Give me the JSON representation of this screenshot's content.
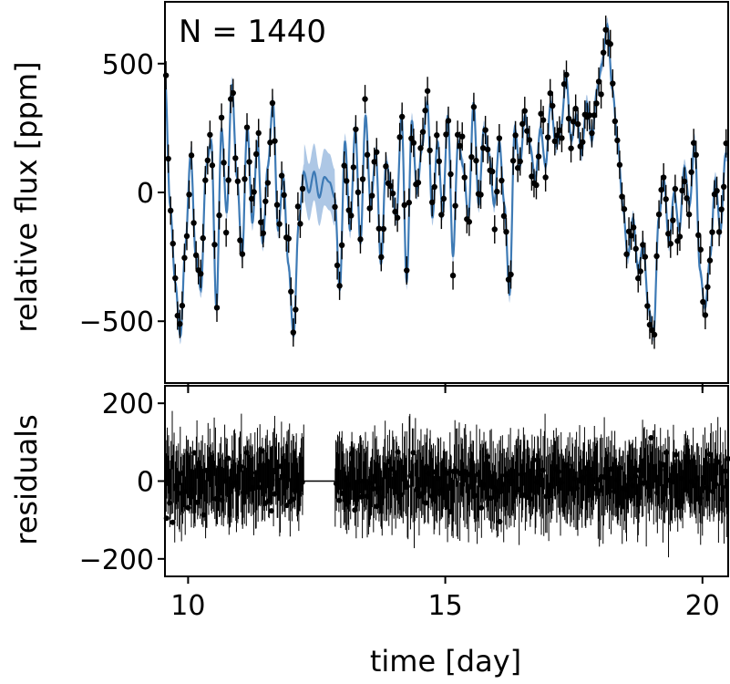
{
  "chart_data": [
    {
      "panel": "top",
      "type": "scatter",
      "title": "",
      "annotation": "N = 1440",
      "ylabel": "relative flux [ppm]",
      "xlabel": "",
      "xlim": [
        9.55,
        20.5
      ],
      "ylim": [
        -740,
        740
      ],
      "yticks": [
        -500,
        0,
        500
      ],
      "ytick_labels": [
        "−500",
        "0",
        "500"
      ],
      "xticks": [
        10,
        15,
        20
      ],
      "gap": [
        12.25,
        12.85
      ],
      "model_color": "#3d7ab5",
      "band_color": "#9fbde0",
      "points_color": "#000000",
      "model_points": [
        [
          9.55,
          450
        ],
        [
          9.65,
          -50
        ],
        [
          9.75,
          -350
        ],
        [
          9.85,
          -560
        ],
        [
          9.95,
          -200
        ],
        [
          10.05,
          150
        ],
        [
          10.15,
          -250
        ],
        [
          10.25,
          -380
        ],
        [
          10.35,
          100
        ],
        [
          10.45,
          200
        ],
        [
          10.55,
          -450
        ],
        [
          10.65,
          250
        ],
        [
          10.75,
          -80
        ],
        [
          10.85,
          420
        ],
        [
          10.95,
          60
        ],
        [
          11.05,
          -250
        ],
        [
          11.15,
          260
        ],
        [
          11.25,
          -120
        ],
        [
          11.35,
          200
        ],
        [
          11.45,
          -200
        ],
        [
          11.55,
          100
        ],
        [
          11.65,
          350
        ],
        [
          11.75,
          -150
        ],
        [
          11.85,
          60
        ],
        [
          11.95,
          -280
        ],
        [
          12.05,
          -560
        ],
        [
          12.15,
          -120
        ],
        [
          12.25,
          80
        ],
        [
          12.35,
          0
        ],
        [
          12.45,
          80
        ],
        [
          12.55,
          -20
        ],
        [
          12.65,
          60
        ],
        [
          12.75,
          40
        ],
        [
          12.85,
          -20
        ],
        [
          12.95,
          -380
        ],
        [
          13.05,
          200
        ],
        [
          13.15,
          -150
        ],
        [
          13.25,
          250
        ],
        [
          13.35,
          -200
        ],
        [
          13.45,
          300
        ],
        [
          13.55,
          -50
        ],
        [
          13.65,
          150
        ],
        [
          13.75,
          -280
        ],
        [
          13.85,
          120
        ],
        [
          13.95,
          20
        ],
        [
          14.05,
          -100
        ],
        [
          14.15,
          300
        ],
        [
          14.25,
          -350
        ],
        [
          14.35,
          280
        ],
        [
          14.45,
          0
        ],
        [
          14.55,
          180
        ],
        [
          14.65,
          350
        ],
        [
          14.75,
          -100
        ],
        [
          14.85,
          200
        ],
        [
          14.95,
          -80
        ],
        [
          15.05,
          300
        ],
        [
          15.15,
          -250
        ],
        [
          15.25,
          200
        ],
        [
          15.35,
          100
        ],
        [
          15.45,
          -100
        ],
        [
          15.55,
          350
        ],
        [
          15.65,
          -50
        ],
        [
          15.75,
          250
        ],
        [
          15.85,
          150
        ],
        [
          15.95,
          -50
        ],
        [
          16.05,
          200
        ],
        [
          16.15,
          -50
        ],
        [
          16.25,
          -400
        ],
        [
          16.35,
          250
        ],
        [
          16.45,
          100
        ],
        [
          16.55,
          300
        ],
        [
          16.65,
          180
        ],
        [
          16.75,
          50
        ],
        [
          16.85,
          250
        ],
        [
          16.95,
          100
        ],
        [
          17.05,
          350
        ],
        [
          17.15,
          180
        ],
        [
          17.25,
          250
        ],
        [
          17.35,
          450
        ],
        [
          17.45,
          200
        ],
        [
          17.55,
          300
        ],
        [
          17.65,
          150
        ],
        [
          17.75,
          350
        ],
        [
          17.85,
          200
        ],
        [
          17.95,
          400
        ],
        [
          18.05,
          500
        ],
        [
          18.15,
          650
        ],
        [
          18.25,
          400
        ],
        [
          18.35,
          200
        ],
        [
          18.45,
          -50
        ],
        [
          18.55,
          -250
        ],
        [
          18.65,
          -100
        ],
        [
          18.75,
          -300
        ],
        [
          18.85,
          -200
        ],
        [
          18.95,
          -450
        ],
        [
          19.05,
          -550
        ],
        [
          19.15,
          -100
        ],
        [
          19.25,
          50
        ],
        [
          19.35,
          -200
        ],
        [
          19.45,
          0
        ],
        [
          19.55,
          -150
        ],
        [
          19.65,
          100
        ],
        [
          19.75,
          -50
        ],
        [
          19.85,
          200
        ],
        [
          19.95,
          -300
        ],
        [
          20.05,
          -450
        ],
        [
          20.15,
          -250
        ],
        [
          20.25,
          50
        ],
        [
          20.35,
          -150
        ],
        [
          20.45,
          150
        ]
      ]
    },
    {
      "panel": "bottom",
      "type": "scatter",
      "ylabel": "residuals",
      "xlabel": "time [day]",
      "xlim": [
        9.55,
        20.5
      ],
      "ylim": [
        -245,
        245
      ],
      "yticks": [
        -200,
        0,
        200
      ],
      "ytick_labels": [
        "−200",
        "0",
        "200"
      ],
      "xticks": [
        10,
        15,
        20
      ],
      "xtick_labels": [
        "10",
        "15",
        "20"
      ],
      "gap": [
        12.25,
        12.85
      ],
      "residual_scale": 90,
      "points_color": "#000000"
    }
  ]
}
